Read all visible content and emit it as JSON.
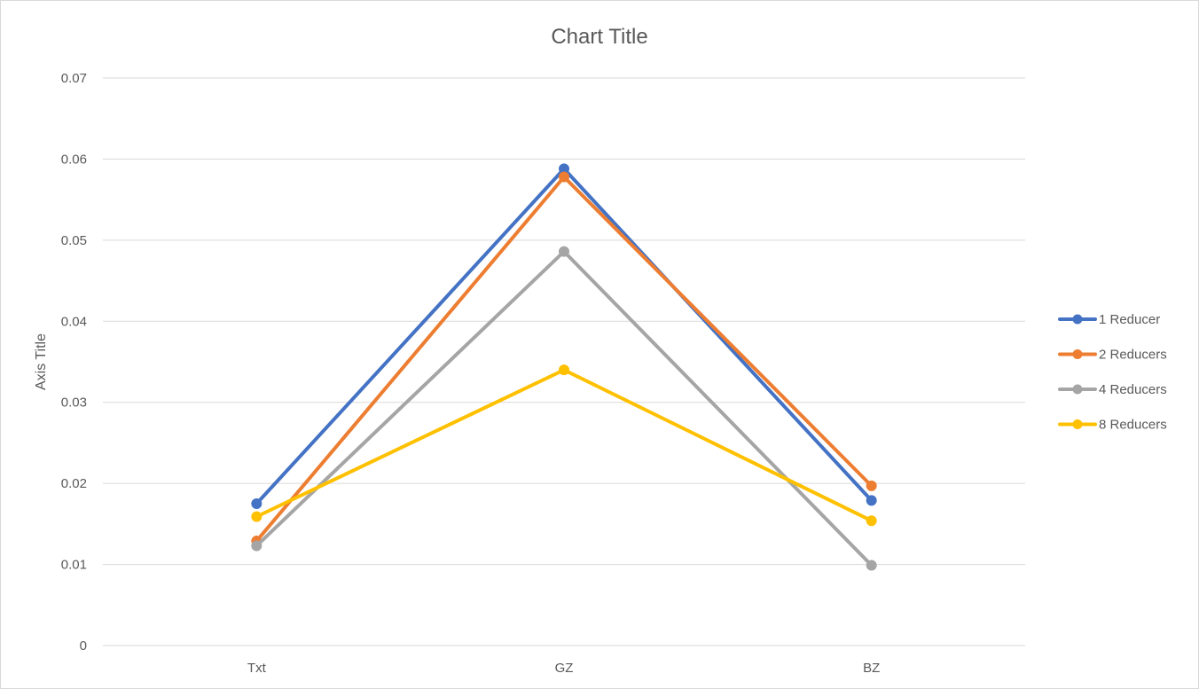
{
  "chart_data": {
    "type": "line",
    "title": "Chart Title",
    "xlabel": "",
    "ylabel": "Axis Title",
    "categories": [
      "Txt",
      "GZ",
      "BZ"
    ],
    "ylim": [
      0,
      0.07
    ],
    "yticks": [
      "0",
      "0.01",
      "0.02",
      "0.03",
      "0.04",
      "0.05",
      "0.06",
      "0.07"
    ],
    "grid": true,
    "legend_position": "right",
    "series": [
      {
        "name": "1 Reducer",
        "color": "#4472c4",
        "values": [
          0.0175,
          0.0588,
          0.0179
        ]
      },
      {
        "name": "2 Reducers",
        "color": "#ed7d31",
        "values": [
          0.0129,
          0.0578,
          0.0197
        ]
      },
      {
        "name": "4 Reducers",
        "color": "#a5a5a5",
        "values": [
          0.0123,
          0.0486,
          0.0099
        ]
      },
      {
        "name": "8 Reducers",
        "color": "#ffc000",
        "values": [
          0.0159,
          0.034,
          0.0154
        ]
      }
    ]
  }
}
